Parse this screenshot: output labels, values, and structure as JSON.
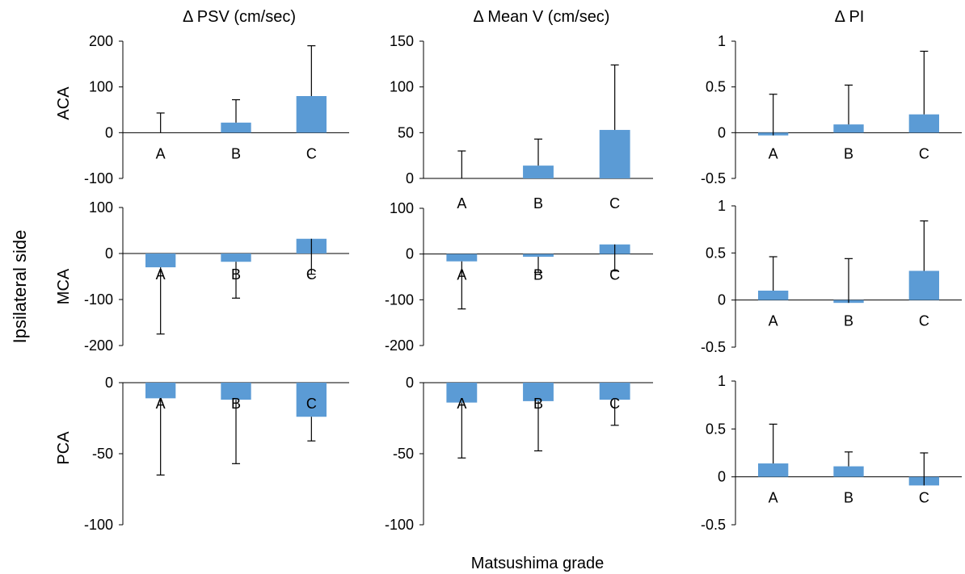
{
  "figure": {
    "y_title": "Ipsilateral side",
    "x_title": "Matsushima grade",
    "column_titles": [
      "Δ PSV (cm/sec)",
      "Δ Mean V (cm/sec)",
      "Δ PI"
    ],
    "row_labels": [
      "ACA",
      "MCA",
      "PCA"
    ],
    "bar_color": "#5B9BD5",
    "error_color": "#000000"
  },
  "chart_data": [
    {
      "type": "bar",
      "row": "ACA",
      "column": "Δ PSV (cm/sec)",
      "categories": [
        "A",
        "B",
        "C"
      ],
      "values": [
        0,
        22,
        80
      ],
      "error_upper": [
        43,
        72,
        190
      ],
      "ylim": [
        -100,
        200
      ],
      "yticks": [
        200,
        100,
        0,
        -100
      ]
    },
    {
      "type": "bar",
      "row": "ACA",
      "column": "Δ Mean V (cm/sec)",
      "categories": [
        "A",
        "B",
        "C"
      ],
      "values": [
        0,
        14,
        53
      ],
      "error_upper": [
        30,
        43,
        124
      ],
      "ylim": [
        0,
        150
      ],
      "yticks": [
        150,
        100,
        50,
        0
      ]
    },
    {
      "type": "bar",
      "row": "ACA",
      "column": "Δ PI",
      "categories": [
        "A",
        "B",
        "C"
      ],
      "values": [
        -0.03,
        0.09,
        0.2
      ],
      "error_upper": [
        0.42,
        0.52,
        0.89
      ],
      "ylim": [
        -0.5,
        1
      ],
      "yticks": [
        1,
        0.5,
        0,
        -0.5
      ]
    },
    {
      "type": "bar",
      "row": "MCA",
      "column": "Δ PSV (cm/sec)",
      "categories": [
        "A",
        "B",
        "C"
      ],
      "values": [
        -30,
        -18,
        32
      ],
      "error_lower": [
        -175,
        -97,
        -45
      ],
      "ylim": [
        -200,
        100
      ],
      "yticks": [
        100,
        0,
        -100,
        -200
      ]
    },
    {
      "type": "bar",
      "row": "MCA",
      "column": "Δ Mean V (cm/sec)",
      "categories": [
        "A",
        "B",
        "C"
      ],
      "values": [
        -16,
        -6,
        21
      ],
      "error_lower": [
        -120,
        -40,
        -37
      ],
      "ylim": [
        -200,
        100
      ],
      "yticks": [
        100,
        0,
        -100,
        -200
      ]
    },
    {
      "type": "bar",
      "row": "MCA",
      "column": "Δ PI",
      "categories": [
        "A",
        "B",
        "C"
      ],
      "values": [
        0.1,
        -0.03,
        0.31
      ],
      "error_upper": [
        0.46,
        0.44,
        0.84
      ],
      "ylim": [
        -0.5,
        1
      ],
      "yticks": [
        1,
        0.5,
        0,
        -0.5
      ]
    },
    {
      "type": "bar",
      "row": "PCA",
      "column": "Δ PSV (cm/sec)",
      "categories": [
        "A",
        "B",
        "C"
      ],
      "values": [
        -11,
        -12,
        -24
      ],
      "error_lower": [
        -65,
        -57,
        -41
      ],
      "ylim": [
        -100,
        0
      ],
      "yticks": [
        0,
        -50,
        -100
      ]
    },
    {
      "type": "bar",
      "row": "PCA",
      "column": "Δ Mean V (cm/sec)",
      "categories": [
        "A",
        "B",
        "C"
      ],
      "values": [
        -14,
        -13,
        -12
      ],
      "error_lower": [
        -53,
        -48,
        -30
      ],
      "ylim": [
        -100,
        0
      ],
      "yticks": [
        0,
        -50,
        -100
      ]
    },
    {
      "type": "bar",
      "row": "PCA",
      "column": "Δ PI",
      "categories": [
        "A",
        "B",
        "C"
      ],
      "values": [
        0.14,
        0.11,
        -0.09
      ],
      "error_upper": [
        0.55,
        0.26,
        0.25
      ],
      "ylim": [
        -0.5,
        1
      ],
      "yticks": [
        1,
        0.5,
        0,
        -0.5
      ]
    }
  ]
}
